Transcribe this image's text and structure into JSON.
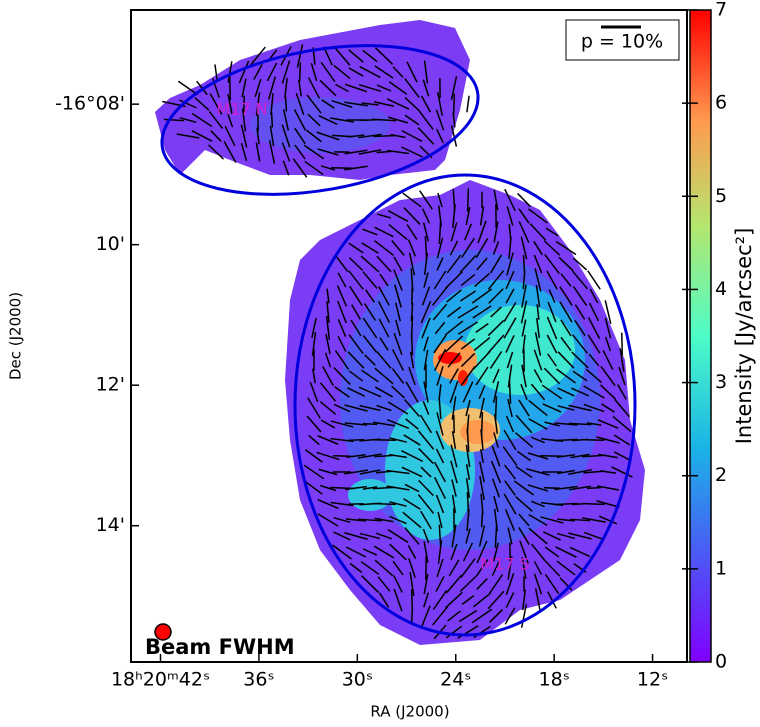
{
  "chart_data": {
    "type": "map",
    "xlabel": "RA (J2000)",
    "ylabel": "Dec (J2000)",
    "colorbar_label": "Intensity [Jy/arcsec²]",
    "xlim": [
      43.8,
      9.9
    ],
    "xticks": [
      {
        "value": 42,
        "label": "18ʰ20ᵐ42ˢ"
      },
      {
        "value": 36,
        "label": "36ˢ"
      },
      {
        "value": 30,
        "label": "30ˢ"
      },
      {
        "value": 24,
        "label": "24ˢ"
      },
      {
        "value": 18,
        "label": "18ˢ"
      },
      {
        "value": 12,
        "label": "12ˢ"
      }
    ],
    "ylim": [
      6.66,
      15.94
    ],
    "yticks": [
      {
        "value": 8,
        "label": "-16°08'"
      },
      {
        "value": 10,
        "label": "10'"
      },
      {
        "value": 12,
        "label": "12'"
      },
      {
        "value": 14,
        "label": "14'"
      }
    ],
    "clim": [
      0,
      7
    ],
    "cticks": [
      0,
      1,
      2,
      3,
      4,
      5,
      6,
      7
    ],
    "annotations": [
      "M17 N",
      "M17 S",
      "p = 10%",
      "Beam FWHM"
    ]
  }
}
